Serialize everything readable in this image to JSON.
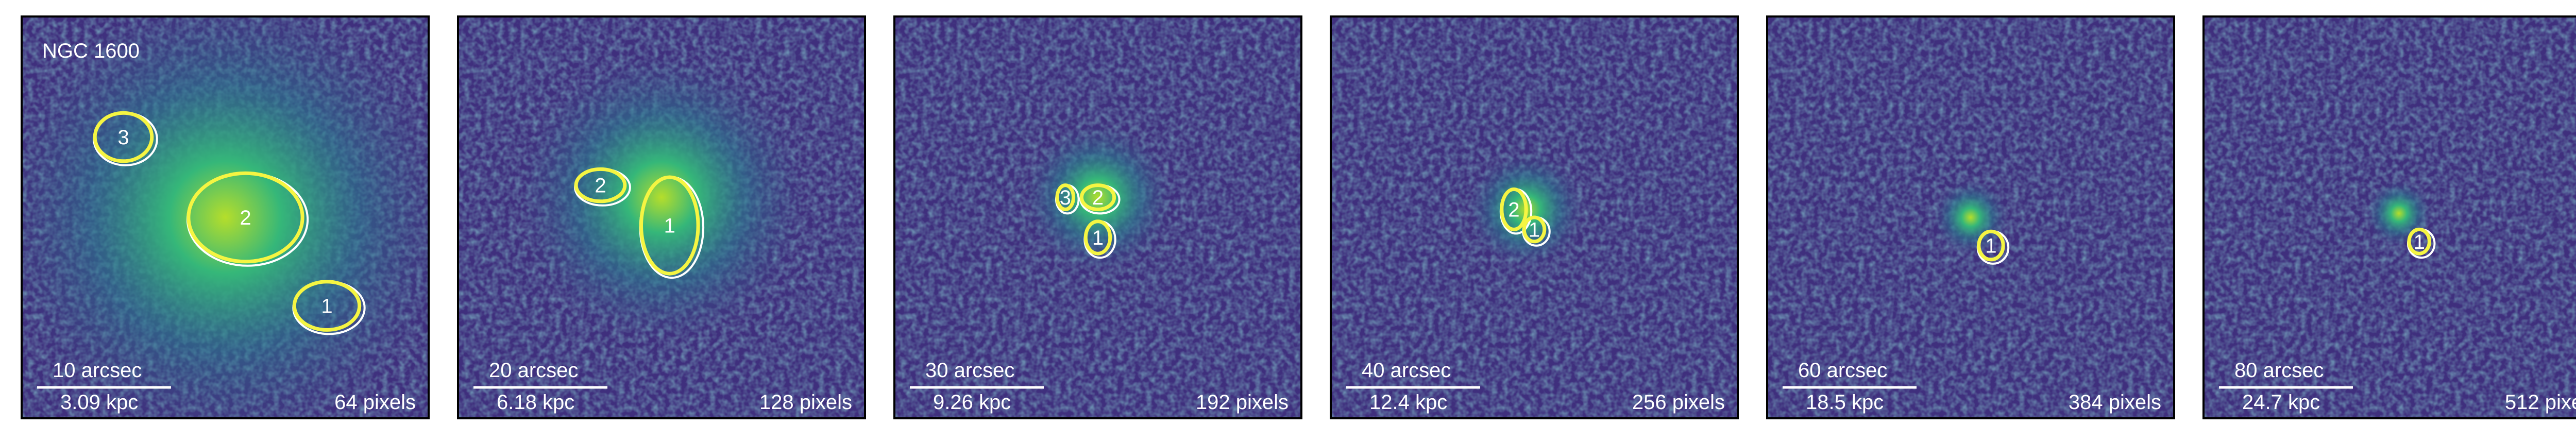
{
  "title": "NGC 1600",
  "panels": [
    {
      "scale_angle": "10 arcsec",
      "scale_distance": "3.09 kpc",
      "size": "64 pixels",
      "regions": [
        "3",
        "2",
        "1"
      ]
    },
    {
      "scale_angle": "20 arcsec",
      "scale_distance": "6.18 kpc",
      "size": "128 pixels",
      "regions": [
        "2",
        "1"
      ]
    },
    {
      "scale_angle": "30 arcsec",
      "scale_distance": "9.26 kpc",
      "size": "192 pixels",
      "regions": [
        "3",
        "2",
        "1"
      ]
    },
    {
      "scale_angle": "40 arcsec",
      "scale_distance": "12.4 kpc",
      "size": "256 pixels",
      "regions": [
        "2",
        "1"
      ]
    },
    {
      "scale_angle": "60 arcsec",
      "scale_distance": "18.5 kpc",
      "size": "384 pixels",
      "regions": [
        "1"
      ]
    },
    {
      "scale_angle": "80 arcsec",
      "scale_distance": "24.7 kpc",
      "size": "512 pixels",
      "regions": [
        "1"
      ]
    }
  ]
}
